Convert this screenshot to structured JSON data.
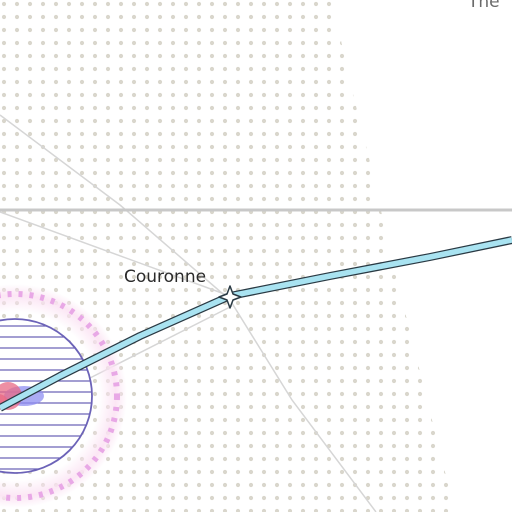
{
  "map": {
    "labels": {
      "couronne": "Couronne",
      "partial_top": "The"
    },
    "colors": {
      "background": "#ffffff",
      "dot_pattern": "#d9d6cc",
      "grey_road": "#c8c8c8",
      "thin_road": "#d6d6d6",
      "route_fill": "#a9e3f1",
      "route_outline": "#2a3a44",
      "circle_stroke": "#6c63b8",
      "halo_dash": "#e8a8e6",
      "halo_glow": "#fbe3f3",
      "heat_red": "#e86a86",
      "heat_blue": "#8f8ff2"
    },
    "icons": {
      "waypoint": "star-icon"
    }
  }
}
